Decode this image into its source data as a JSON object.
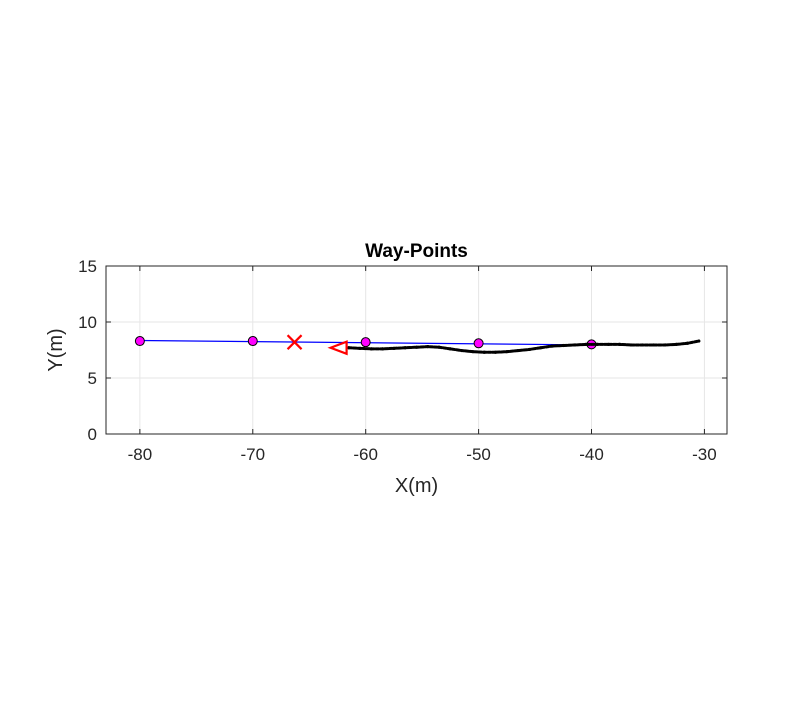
{
  "chart_data": {
    "type": "scatter",
    "title": "Way-Points",
    "xlabel": "X(m)",
    "ylabel": "Y(m)",
    "xlim": [
      -83,
      -28
    ],
    "ylim": [
      0,
      15
    ],
    "xticks": [
      -80,
      -70,
      -60,
      -50,
      -40,
      -30
    ],
    "yticks": [
      0,
      5,
      10,
      15
    ],
    "grid": true,
    "colors": {
      "path_line": "#0000ff",
      "waypoint_fill": "#ff00ff",
      "waypoint_edge": "#000000",
      "trajectory": "#000000",
      "target_marker": "#ff0000",
      "vehicle_marker": "#ff0000",
      "grid": "#e6e6e6",
      "axes": "#262626"
    },
    "series": [
      {
        "kind": "line",
        "x": [
          -80,
          -40
        ],
        "y": [
          8.35,
          7.95
        ]
      },
      {
        "kind": "waypoints",
        "x": [
          -80,
          -70,
          -60,
          -50,
          -40
        ],
        "y": [
          8.3,
          8.3,
          8.2,
          8.1,
          8.0
        ]
      },
      {
        "kind": "trajectory",
        "x": [
          -61.5,
          -60.5,
          -59.5,
          -58.5,
          -57.5,
          -56.5,
          -55.5,
          -54.5,
          -53.5,
          -52.5,
          -51.5,
          -50.5,
          -49.5,
          -48.5,
          -47.5,
          -46.5,
          -45.5,
          -44.5,
          -43.5,
          -42.5,
          -41.5,
          -40.5,
          -39.5,
          -38.5,
          -37.5,
          -36.5,
          -35.5,
          -34.5,
          -33.5,
          -32.5,
          -31.5,
          -30.5
        ],
        "y": [
          7.7,
          7.65,
          7.6,
          7.6,
          7.65,
          7.7,
          7.75,
          7.8,
          7.75,
          7.6,
          7.45,
          7.35,
          7.3,
          7.3,
          7.35,
          7.45,
          7.55,
          7.7,
          7.85,
          7.9,
          7.95,
          8.0,
          8.0,
          8.0,
          8.0,
          7.95,
          7.95,
          7.95,
          7.95,
          8.0,
          8.1,
          8.3
        ]
      },
      {
        "kind": "target",
        "x": [
          -66.3
        ],
        "y": [
          8.2
        ]
      },
      {
        "kind": "vehicle",
        "x": [
          -62.4
        ],
        "y": [
          7.7
        ]
      }
    ]
  }
}
